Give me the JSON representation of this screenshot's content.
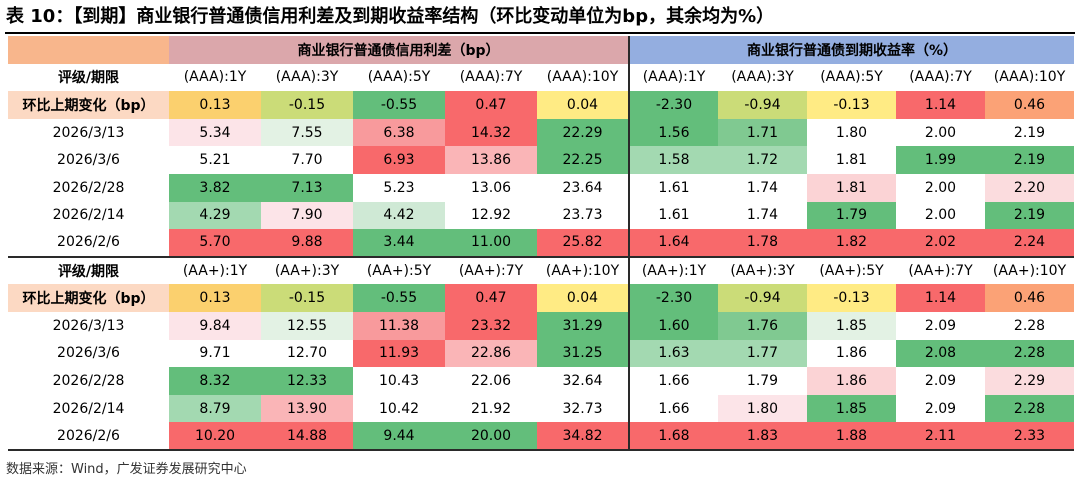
{
  "title": "表 10：【到期】商业银行普通债信用利差及到期收益率结构（环比变动单位为bp，其余均为%）",
  "source": "数据来源：Wind，广发证券发展研究中心",
  "header": {
    "left_group": "商业银行普通债信用利差（bp）",
    "right_group": "商业银行普通债到期收益率（%）"
  },
  "colors": {
    "group_blank": "#f8b68c",
    "group_left": "#dba7ab",
    "group_right": "#94aee0",
    "label_bg": "#fcd9c3"
  },
  "blocks": [
    {
      "label": "评级/期限",
      "columns": [
        "(AAA):1Y",
        "(AAA):3Y",
        "(AAA):5Y",
        "(AAA):7Y",
        "(AAA):10Y",
        "(AAA):1Y",
        "(AAA):3Y",
        "(AAA):5Y",
        "(AAA):7Y",
        "(AAA):10Y"
      ],
      "change_label": "环比上期变化（bp）",
      "change": {
        "values": [
          "0.13",
          "-0.15",
          "-0.55",
          "0.47",
          "0.04",
          "-2.30",
          "-0.94",
          "-0.13",
          "1.14",
          "0.46"
        ],
        "colors": [
          "#fbd06e",
          "#cbdc78",
          "#63be7b",
          "#f8696b",
          "#ffeb84",
          "#63be7b",
          "#cbdc78",
          "#ffeb84",
          "#f8696b",
          "#fba276"
        ]
      },
      "rows": [
        {
          "date": "2026/3/13",
          "values": [
            "5.34",
            "7.55",
            "6.38",
            "14.32",
            "22.29",
            "1.56",
            "1.71",
            "1.80",
            "2.00",
            "2.19"
          ],
          "colors": [
            "#fce4e8",
            "#e3f2e4",
            "#f89a9c",
            "#f8696b",
            "#63be7b",
            "#63be7b",
            "#80c991",
            "#ffffff",
            "#ffffff",
            "#ffffff"
          ]
        },
        {
          "date": "2026/3/6",
          "values": [
            "5.21",
            "7.70",
            "6.93",
            "13.86",
            "22.25",
            "1.58",
            "1.72",
            "1.81",
            "1.99",
            "2.19"
          ],
          "colors": [
            "#ffffff",
            "#ffffff",
            "#f8696b",
            "#fab5b7",
            "#63be7b",
            "#a3d9b1",
            "#a3d9b1",
            "#ffffff",
            "#63be7b",
            "#63be7b"
          ]
        },
        {
          "date": "2026/2/28",
          "values": [
            "3.82",
            "7.13",
            "5.23",
            "13.06",
            "23.64",
            "1.61",
            "1.74",
            "1.81",
            "2.00",
            "2.20"
          ],
          "colors": [
            "#63be7b",
            "#63be7b",
            "#ffffff",
            "#ffffff",
            "#ffffff",
            "#ffffff",
            "#ffffff",
            "#fbd3d5",
            "#ffffff",
            "#fbdcde"
          ]
        },
        {
          "date": "2026/2/14",
          "values": [
            "4.29",
            "7.90",
            "4.42",
            "12.92",
            "23.73",
            "1.61",
            "1.74",
            "1.79",
            "2.00",
            "2.19"
          ],
          "colors": [
            "#a3d9b1",
            "#fce4e8",
            "#cfe9d5",
            "#ffffff",
            "#ffffff",
            "#ffffff",
            "#ffffff",
            "#63be7b",
            "#ffffff",
            "#63be7b"
          ]
        },
        {
          "date": "2026/2/6",
          "values": [
            "5.70",
            "9.88",
            "3.44",
            "11.00",
            "25.82",
            "1.64",
            "1.78",
            "1.82",
            "2.02",
            "2.24"
          ],
          "colors": [
            "#f8696b",
            "#f8696b",
            "#63be7b",
            "#63be7b",
            "#f8696b",
            "#f8696b",
            "#f8696b",
            "#f8696b",
            "#f8696b",
            "#f8696b"
          ]
        }
      ]
    },
    {
      "label": "评级/期限",
      "columns": [
        "(AA+):1Y",
        "(AA+):3Y",
        "(AA+):5Y",
        "(AA+):7Y",
        "(AA+):10Y",
        "(AA+):1Y",
        "(AA+):3Y",
        "(AA+):5Y",
        "(AA+):7Y",
        "(AA+):10Y"
      ],
      "change_label": "环比上期变化（bp）",
      "change": {
        "values": [
          "0.13",
          "-0.15",
          "-0.55",
          "0.47",
          "0.04",
          "-2.30",
          "-0.94",
          "-0.13",
          "1.14",
          "0.46"
        ],
        "colors": [
          "#fbd06e",
          "#cbdc78",
          "#63be7b",
          "#f8696b",
          "#ffeb84",
          "#63be7b",
          "#cbdc78",
          "#ffeb84",
          "#f8696b",
          "#fba276"
        ]
      },
      "rows": [
        {
          "date": "2026/3/13",
          "values": [
            "9.84",
            "12.55",
            "11.38",
            "23.32",
            "31.29",
            "1.60",
            "1.76",
            "1.85",
            "2.09",
            "2.28"
          ],
          "colors": [
            "#fce4e8",
            "#e3f2e4",
            "#f89a9c",
            "#f8696b",
            "#63be7b",
            "#63be7b",
            "#80c991",
            "#e3f2e4",
            "#ffffff",
            "#ffffff"
          ]
        },
        {
          "date": "2026/3/6",
          "values": [
            "9.71",
            "12.70",
            "11.93",
            "22.86",
            "31.25",
            "1.63",
            "1.77",
            "1.86",
            "2.08",
            "2.28"
          ],
          "colors": [
            "#ffffff",
            "#ffffff",
            "#f8696b",
            "#fab5b7",
            "#63be7b",
            "#a3d9b1",
            "#a3d9b1",
            "#ffffff",
            "#63be7b",
            "#63be7b"
          ]
        },
        {
          "date": "2026/2/28",
          "values": [
            "8.32",
            "12.33",
            "10.43",
            "22.06",
            "32.64",
            "1.66",
            "1.79",
            "1.86",
            "2.09",
            "2.29"
          ],
          "colors": [
            "#63be7b",
            "#63be7b",
            "#ffffff",
            "#ffffff",
            "#ffffff",
            "#ffffff",
            "#ffffff",
            "#fbd3d5",
            "#ffffff",
            "#fbdcde"
          ]
        },
        {
          "date": "2026/2/14",
          "values": [
            "8.79",
            "13.90",
            "10.42",
            "21.92",
            "32.73",
            "1.66",
            "1.80",
            "1.85",
            "2.09",
            "2.28"
          ],
          "colors": [
            "#a3d9b1",
            "#fab5b7",
            "#ffffff",
            "#ffffff",
            "#ffffff",
            "#ffffff",
            "#fce4e8",
            "#63be7b",
            "#ffffff",
            "#63be7b"
          ]
        },
        {
          "date": "2026/2/6",
          "values": [
            "10.20",
            "14.88",
            "9.44",
            "20.00",
            "34.82",
            "1.68",
            "1.83",
            "1.88",
            "2.11",
            "2.33"
          ],
          "colors": [
            "#f8696b",
            "#f8696b",
            "#63be7b",
            "#63be7b",
            "#f8696b",
            "#f8696b",
            "#f8696b",
            "#f8696b",
            "#f8696b",
            "#f8696b"
          ]
        }
      ]
    }
  ]
}
